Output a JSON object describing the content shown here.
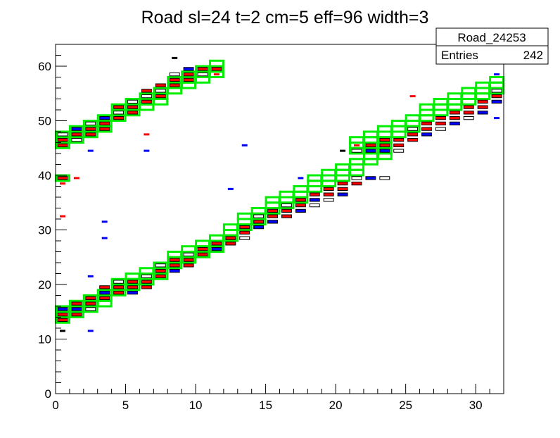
{
  "chart_data": {
    "type": "heatmap",
    "title": "Road sl=24 t=2 cm=5 eff=96 width=3",
    "xlabel": "",
    "ylabel": "",
    "xlim": [
      0,
      32
    ],
    "ylim": [
      0,
      64
    ],
    "x_ticks": [
      "0",
      "5",
      "10",
      "15",
      "20",
      "25",
      "30"
    ],
    "y_ticks": [
      "0",
      "10",
      "20",
      "30",
      "40",
      "50",
      "60"
    ],
    "grid": false,
    "stats_box": {
      "name": "Road_24253",
      "entries_label": "Entries",
      "entries_value": "242"
    },
    "colors": {
      "road": "#00ee00",
      "main_hit": "#ff0000",
      "alt_hit": "#0000ff",
      "frame": "#000000"
    },
    "road_segments": [
      {
        "x_start": 0,
        "x_end": 13,
        "y_start": 13,
        "y_step": 1.25,
        "width": 3
      },
      {
        "x_start": 13,
        "x_end": 24,
        "y_start": 30.5,
        "y_step": 1.3,
        "width": 3
      },
      {
        "x_start": 21,
        "x_end": 32,
        "y_start": 44.5,
        "y_step": 1.1,
        "width": 3
      },
      {
        "x_start": 0,
        "x_end": 12,
        "y_start": 45,
        "y_step": 1.25,
        "width": 3
      },
      {
        "x_start": 0,
        "x_end": 1,
        "y_start": 39.5,
        "y_step": 0,
        "width": 1
      }
    ],
    "hits": [
      {
        "x": 0,
        "y": 13.5,
        "t": "r"
      },
      {
        "x": 0,
        "y": 14.5,
        "t": "r"
      },
      {
        "x": 0,
        "y": 15.5,
        "t": "b"
      },
      {
        "x": 1,
        "y": 14.5,
        "t": "r"
      },
      {
        "x": 1,
        "y": 15.5,
        "t": "b"
      },
      {
        "x": 1,
        "y": 16.5,
        "t": "r"
      },
      {
        "x": 2,
        "y": 15.5,
        "t": "w"
      },
      {
        "x": 2,
        "y": 16.5,
        "t": "r"
      },
      {
        "x": 2,
        "y": 17.5,
        "t": "r"
      },
      {
        "x": 3,
        "y": 17.5,
        "t": "r"
      },
      {
        "x": 3,
        "y": 18.5,
        "t": "b"
      },
      {
        "x": 3,
        "y": 19.5,
        "t": "r"
      },
      {
        "x": 4,
        "y": 18.5,
        "t": "r"
      },
      {
        "x": 4,
        "y": 19.5,
        "t": "r"
      },
      {
        "x": 4,
        "y": 20.5,
        "t": "w"
      },
      {
        "x": 5,
        "y": 18.5,
        "t": "b"
      },
      {
        "x": 5,
        "y": 19.5,
        "t": "r"
      },
      {
        "x": 5,
        "y": 20.5,
        "t": "r"
      },
      {
        "x": 6,
        "y": 19.5,
        "t": "r"
      },
      {
        "x": 6,
        "y": 20.5,
        "t": "r"
      },
      {
        "x": 6,
        "y": 21.5,
        "t": "w"
      },
      {
        "x": 7,
        "y": 21.5,
        "t": "r"
      },
      {
        "x": 7,
        "y": 22.5,
        "t": "r"
      },
      {
        "x": 7,
        "y": 23.5,
        "t": "w"
      },
      {
        "x": 8,
        "y": 22.5,
        "t": "b"
      },
      {
        "x": 8,
        "y": 23.5,
        "t": "r"
      },
      {
        "x": 8,
        "y": 24.5,
        "t": "r"
      },
      {
        "x": 9,
        "y": 23.5,
        "t": "r"
      },
      {
        "x": 9,
        "y": 24.5,
        "t": "r"
      },
      {
        "x": 9,
        "y": 25.5,
        "t": "w"
      },
      {
        "x": 10,
        "y": 25.5,
        "t": "r"
      },
      {
        "x": 10,
        "y": 26.5,
        "t": "r"
      },
      {
        "x": 11,
        "y": 26.5,
        "t": "b"
      },
      {
        "x": 11,
        "y": 27.5,
        "t": "r"
      },
      {
        "x": 12,
        "y": 27.5,
        "t": "r"
      },
      {
        "x": 12,
        "y": 28.5,
        "t": "r"
      },
      {
        "x": 13,
        "y": 29.5,
        "t": "r"
      },
      {
        "x": 13,
        "y": 30.5,
        "t": "r"
      },
      {
        "x": 13,
        "y": 28.5,
        "t": "w"
      },
      {
        "x": 14,
        "y": 30.5,
        "t": "b"
      },
      {
        "x": 14,
        "y": 31.5,
        "t": "r"
      },
      {
        "x": 14,
        "y": 32.5,
        "t": "w"
      },
      {
        "x": 15,
        "y": 31.5,
        "t": "b"
      },
      {
        "x": 15,
        "y": 32.5,
        "t": "r"
      },
      {
        "x": 15,
        "y": 33.5,
        "t": "r"
      },
      {
        "x": 16,
        "y": 32.5,
        "t": "r"
      },
      {
        "x": 16,
        "y": 33.5,
        "t": "r"
      },
      {
        "x": 16,
        "y": 34.5,
        "t": "w"
      },
      {
        "x": 17,
        "y": 33.5,
        "t": "b"
      },
      {
        "x": 17,
        "y": 34.5,
        "t": "r"
      },
      {
        "x": 17,
        "y": 35.5,
        "t": "r"
      },
      {
        "x": 18,
        "y": 35.5,
        "t": "b"
      },
      {
        "x": 18,
        "y": 36.5,
        "t": "r"
      },
      {
        "x": 18,
        "y": 34.5,
        "t": "w"
      },
      {
        "x": 19,
        "y": 36.5,
        "t": "r"
      },
      {
        "x": 19,
        "y": 37.5,
        "t": "r"
      },
      {
        "x": 19,
        "y": 35.5,
        "t": "w"
      },
      {
        "x": 20,
        "y": 37.5,
        "t": "r"
      },
      {
        "x": 20,
        "y": 38.5,
        "t": "r"
      },
      {
        "x": 20,
        "y": 36.5,
        "t": "b"
      },
      {
        "x": 21,
        "y": 38.5,
        "t": "r"
      },
      {
        "x": 21,
        "y": 39.5,
        "t": "w"
      },
      {
        "x": 22,
        "y": 39.5,
        "t": "b"
      },
      {
        "x": 23,
        "y": 39.5,
        "t": "w"
      },
      {
        "x": 21,
        "y": 44.5,
        "t": "w"
      },
      {
        "x": 22,
        "y": 44.5,
        "t": "b"
      },
      {
        "x": 22,
        "y": 45.5,
        "t": "r"
      },
      {
        "x": 23,
        "y": 44.5,
        "t": "b"
      },
      {
        "x": 23,
        "y": 45.5,
        "t": "r"
      },
      {
        "x": 23,
        "y": 46.5,
        "t": "r"
      },
      {
        "x": 24,
        "y": 45.5,
        "t": "r"
      },
      {
        "x": 24,
        "y": 46.5,
        "t": "r"
      },
      {
        "x": 24,
        "y": 44.5,
        "t": "w"
      },
      {
        "x": 25,
        "y": 46.5,
        "t": "r"
      },
      {
        "x": 25,
        "y": 47.5,
        "t": "r"
      },
      {
        "x": 25,
        "y": 48.5,
        "t": "w"
      },
      {
        "x": 26,
        "y": 47.5,
        "t": "b"
      },
      {
        "x": 26,
        "y": 48.5,
        "t": "r"
      },
      {
        "x": 26,
        "y": 49.5,
        "t": "r"
      },
      {
        "x": 27,
        "y": 48.5,
        "t": "w"
      },
      {
        "x": 27,
        "y": 49.5,
        "t": "r"
      },
      {
        "x": 27,
        "y": 50.5,
        "t": "r"
      },
      {
        "x": 28,
        "y": 49.5,
        "t": "b"
      },
      {
        "x": 28,
        "y": 50.5,
        "t": "r"
      },
      {
        "x": 28,
        "y": 51.5,
        "t": "r"
      },
      {
        "x": 29,
        "y": 50.5,
        "t": "w"
      },
      {
        "x": 29,
        "y": 51.5,
        "t": "r"
      },
      {
        "x": 29,
        "y": 52.5,
        "t": "r"
      },
      {
        "x": 30,
        "y": 51.5,
        "t": "b"
      },
      {
        "x": 30,
        "y": 52.5,
        "t": "r"
      },
      {
        "x": 30,
        "y": 53.5,
        "t": "r"
      },
      {
        "x": 31,
        "y": 53.5,
        "t": "b"
      },
      {
        "x": 31,
        "y": 54.5,
        "t": "r"
      },
      {
        "x": 31,
        "y": 55.5,
        "t": "w"
      },
      {
        "x": 0,
        "y": 39.5,
        "t": "r"
      },
      {
        "x": 0,
        "y": 45.5,
        "t": "r"
      },
      {
        "x": 0,
        "y": 46.5,
        "t": "r"
      },
      {
        "x": 0,
        "y": 47.5,
        "t": "w"
      },
      {
        "x": 1,
        "y": 46.5,
        "t": "w"
      },
      {
        "x": 1,
        "y": 47.5,
        "t": "r"
      },
      {
        "x": 1,
        "y": 48.5,
        "t": "b"
      },
      {
        "x": 2,
        "y": 47.5,
        "t": "r"
      },
      {
        "x": 2,
        "y": 48.5,
        "t": "r"
      },
      {
        "x": 2,
        "y": 49.5,
        "t": "w"
      },
      {
        "x": 3,
        "y": 48.5,
        "t": "r"
      },
      {
        "x": 3,
        "y": 49.5,
        "t": "r"
      },
      {
        "x": 3,
        "y": 50.5,
        "t": "b"
      },
      {
        "x": 4,
        "y": 50.5,
        "t": "r"
      },
      {
        "x": 4,
        "y": 51.5,
        "t": "w"
      },
      {
        "x": 4,
        "y": 52.5,
        "t": "r"
      },
      {
        "x": 5,
        "y": 51.5,
        "t": "r"
      },
      {
        "x": 5,
        "y": 52.5,
        "t": "r"
      },
      {
        "x": 5,
        "y": 53.5,
        "t": "w"
      },
      {
        "x": 6,
        "y": 53.5,
        "t": "r"
      },
      {
        "x": 6,
        "y": 54.5,
        "t": "w"
      },
      {
        "x": 6,
        "y": 55.5,
        "t": "r"
      },
      {
        "x": 7,
        "y": 54.5,
        "t": "r"
      },
      {
        "x": 7,
        "y": 55.5,
        "t": "w"
      },
      {
        "x": 7,
        "y": 56.5,
        "t": "r"
      },
      {
        "x": 8,
        "y": 56.5,
        "t": "r"
      },
      {
        "x": 8,
        "y": 57.5,
        "t": "r"
      },
      {
        "x": 8,
        "y": 58.5,
        "t": "w"
      },
      {
        "x": 9,
        "y": 57.5,
        "t": "r"
      },
      {
        "x": 9,
        "y": 58.5,
        "t": "r"
      },
      {
        "x": 9,
        "y": 59.5,
        "t": "b"
      },
      {
        "x": 10,
        "y": 58.5,
        "t": "w"
      },
      {
        "x": 10,
        "y": 59.5,
        "t": "r"
      },
      {
        "x": 11,
        "y": 59.5,
        "t": "r"
      }
    ],
    "stray_hits": [
      {
        "x": 0,
        "y": 11.5,
        "t": "k"
      },
      {
        "x": 2,
        "y": 11.5,
        "t": "b"
      },
      {
        "x": 2,
        "y": 21.5,
        "t": "b"
      },
      {
        "x": 3,
        "y": 28.5,
        "t": "b"
      },
      {
        "x": 3,
        "y": 31.5,
        "t": "b"
      },
      {
        "x": 0,
        "y": 32.5,
        "t": "r"
      },
      {
        "x": 0,
        "y": 38.5,
        "t": "r"
      },
      {
        "x": 1,
        "y": 39.5,
        "t": "r"
      },
      {
        "x": 6,
        "y": 44.5,
        "t": "b"
      },
      {
        "x": 6,
        "y": 47.5,
        "t": "r"
      },
      {
        "x": 2,
        "y": 44.5,
        "t": "b"
      },
      {
        "x": 13,
        "y": 45.5,
        "t": "b"
      },
      {
        "x": 12,
        "y": 37.5,
        "t": "b"
      },
      {
        "x": 17,
        "y": 39.5,
        "t": "b"
      },
      {
        "x": 20,
        "y": 44.5,
        "t": "k"
      },
      {
        "x": 21,
        "y": 45.5,
        "t": "r"
      },
      {
        "x": 25,
        "y": 54.5,
        "t": "r"
      },
      {
        "x": 31,
        "y": 58.5,
        "t": "b"
      },
      {
        "x": 31,
        "y": 50.5,
        "t": "b"
      },
      {
        "x": 8,
        "y": 61.5,
        "t": "k"
      },
      {
        "x": 11,
        "y": 58.5,
        "t": "r"
      }
    ]
  }
}
